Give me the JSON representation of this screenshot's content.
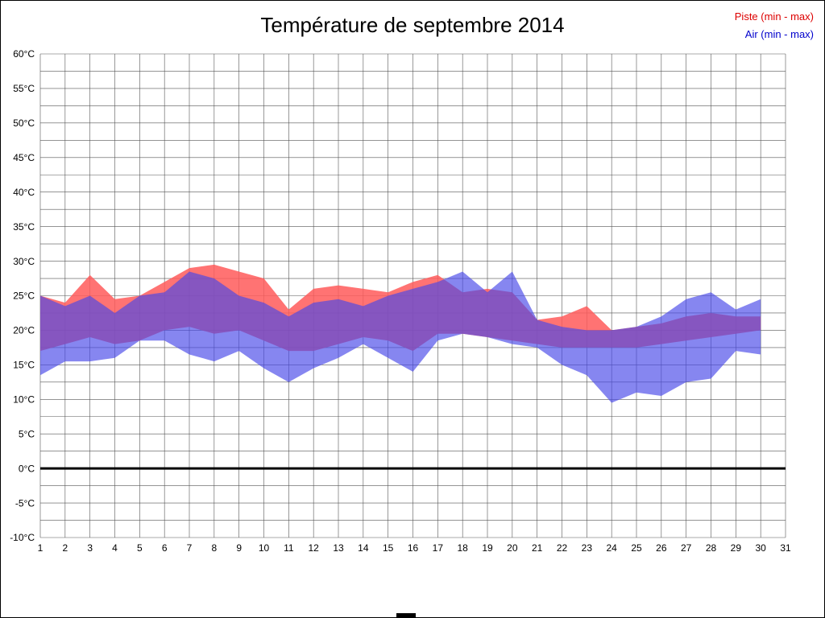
{
  "chart_data": {
    "type": "area",
    "title": "Température de septembre 2014",
    "xlabel": "",
    "ylabel": "",
    "x": [
      1,
      2,
      3,
      4,
      5,
      6,
      7,
      8,
      9,
      10,
      11,
      12,
      13,
      14,
      15,
      16,
      17,
      18,
      19,
      20,
      21,
      22,
      23,
      24,
      25,
      26,
      27,
      28,
      29,
      30
    ],
    "xlim": [
      1,
      31
    ],
    "ylim": [
      -10,
      60
    ],
    "grid": {
      "x_step": 1,
      "y_step": 2.5,
      "color": "#555555",
      "width": 0.6
    },
    "zero_line": {
      "value": 0,
      "color": "#000000",
      "width": 3
    },
    "legend_position": "top-right",
    "x_ticks": [
      {
        "v": 1,
        "label": "1"
      },
      {
        "v": 2,
        "label": "2"
      },
      {
        "v": 3,
        "label": "3"
      },
      {
        "v": 4,
        "label": "4"
      },
      {
        "v": 5,
        "label": "5"
      },
      {
        "v": 6,
        "label": "6"
      },
      {
        "v": 7,
        "label": "7"
      },
      {
        "v": 8,
        "label": "8"
      },
      {
        "v": 9,
        "label": "9"
      },
      {
        "v": 10,
        "label": "10"
      },
      {
        "v": 11,
        "label": "11"
      },
      {
        "v": 12,
        "label": "12"
      },
      {
        "v": 13,
        "label": "13"
      },
      {
        "v": 14,
        "label": "14"
      },
      {
        "v": 15,
        "label": "15"
      },
      {
        "v": 16,
        "label": "16"
      },
      {
        "v": 17,
        "label": "17"
      },
      {
        "v": 18,
        "label": "18"
      },
      {
        "v": 19,
        "label": "19"
      },
      {
        "v": 20,
        "label": "20"
      },
      {
        "v": 21,
        "label": "21"
      },
      {
        "v": 22,
        "label": "22"
      },
      {
        "v": 23,
        "label": "23"
      },
      {
        "v": 24,
        "label": "24"
      },
      {
        "v": 25,
        "label": "25"
      },
      {
        "v": 26,
        "label": "26"
      },
      {
        "v": 27,
        "label": "27"
      },
      {
        "v": 28,
        "label": "28"
      },
      {
        "v": 29,
        "label": "29"
      },
      {
        "v": 30,
        "label": "30"
      },
      {
        "v": 31,
        "label": "31"
      }
    ],
    "y_ticks": [
      {
        "v": 60,
        "label": "60°C"
      },
      {
        "v": 55,
        "label": "55°C"
      },
      {
        "v": 50,
        "label": "50°C"
      },
      {
        "v": 45,
        "label": "45°C"
      },
      {
        "v": 40,
        "label": "40°C"
      },
      {
        "v": 35,
        "label": "35°C"
      },
      {
        "v": 30,
        "label": "30°C"
      },
      {
        "v": 25,
        "label": "25°C"
      },
      {
        "v": 20,
        "label": "20°C"
      },
      {
        "v": 15,
        "label": "15°C"
      },
      {
        "v": 10,
        "label": "10°C"
      },
      {
        "v": 5,
        "label": "5°C"
      },
      {
        "v": 0,
        "label": "0°C"
      },
      {
        "v": -5,
        "label": "-5°C"
      },
      {
        "v": -10,
        "label": "-10°C"
      }
    ],
    "series": [
      {
        "name": "Piste (min - max)",
        "fill": "#ff5a5a",
        "opacity": 0.85,
        "legend_color": "#dd0000",
        "max": [
          25,
          24,
          28,
          24.5,
          25,
          27,
          29,
          29.5,
          28.5,
          27.5,
          23,
          26,
          26.5,
          26,
          25.5,
          27,
          28,
          25.5,
          26,
          25.5,
          21.5,
          22,
          23.5,
          20,
          20.5,
          21,
          22,
          22.5,
          22,
          22
        ],
        "min": [
          17,
          18,
          19,
          18,
          18.5,
          20,
          20.5,
          19.5,
          20,
          18.5,
          17,
          17,
          18,
          19,
          18.5,
          17,
          19.5,
          19.5,
          19,
          18.5,
          18,
          17.5,
          17.5,
          17.5,
          17.5,
          18,
          18.5,
          19,
          19.5,
          20
        ]
      },
      {
        "name": "Air (min - max)",
        "fill": "#4848e8",
        "opacity": 0.66,
        "legend_color": "#0000cc",
        "max": [
          25,
          23.5,
          25,
          22.5,
          25,
          25.5,
          28.5,
          27.5,
          25,
          24,
          22,
          24,
          24.5,
          23.5,
          25,
          26,
          27,
          28.5,
          25.5,
          28.5,
          21.5,
          20.5,
          20,
          20,
          20.5,
          22,
          24.5,
          25.5,
          23,
          24.5
        ],
        "min": [
          13.5,
          15.5,
          15.5,
          16,
          18.5,
          18.5,
          16.5,
          15.5,
          17,
          14.5,
          12.5,
          14.5,
          16,
          18,
          16,
          14,
          18.5,
          19.5,
          19,
          18,
          17.5,
          15,
          13.5,
          9.5,
          11,
          10.5,
          12.5,
          13,
          17,
          16.5
        ]
      }
    ]
  }
}
